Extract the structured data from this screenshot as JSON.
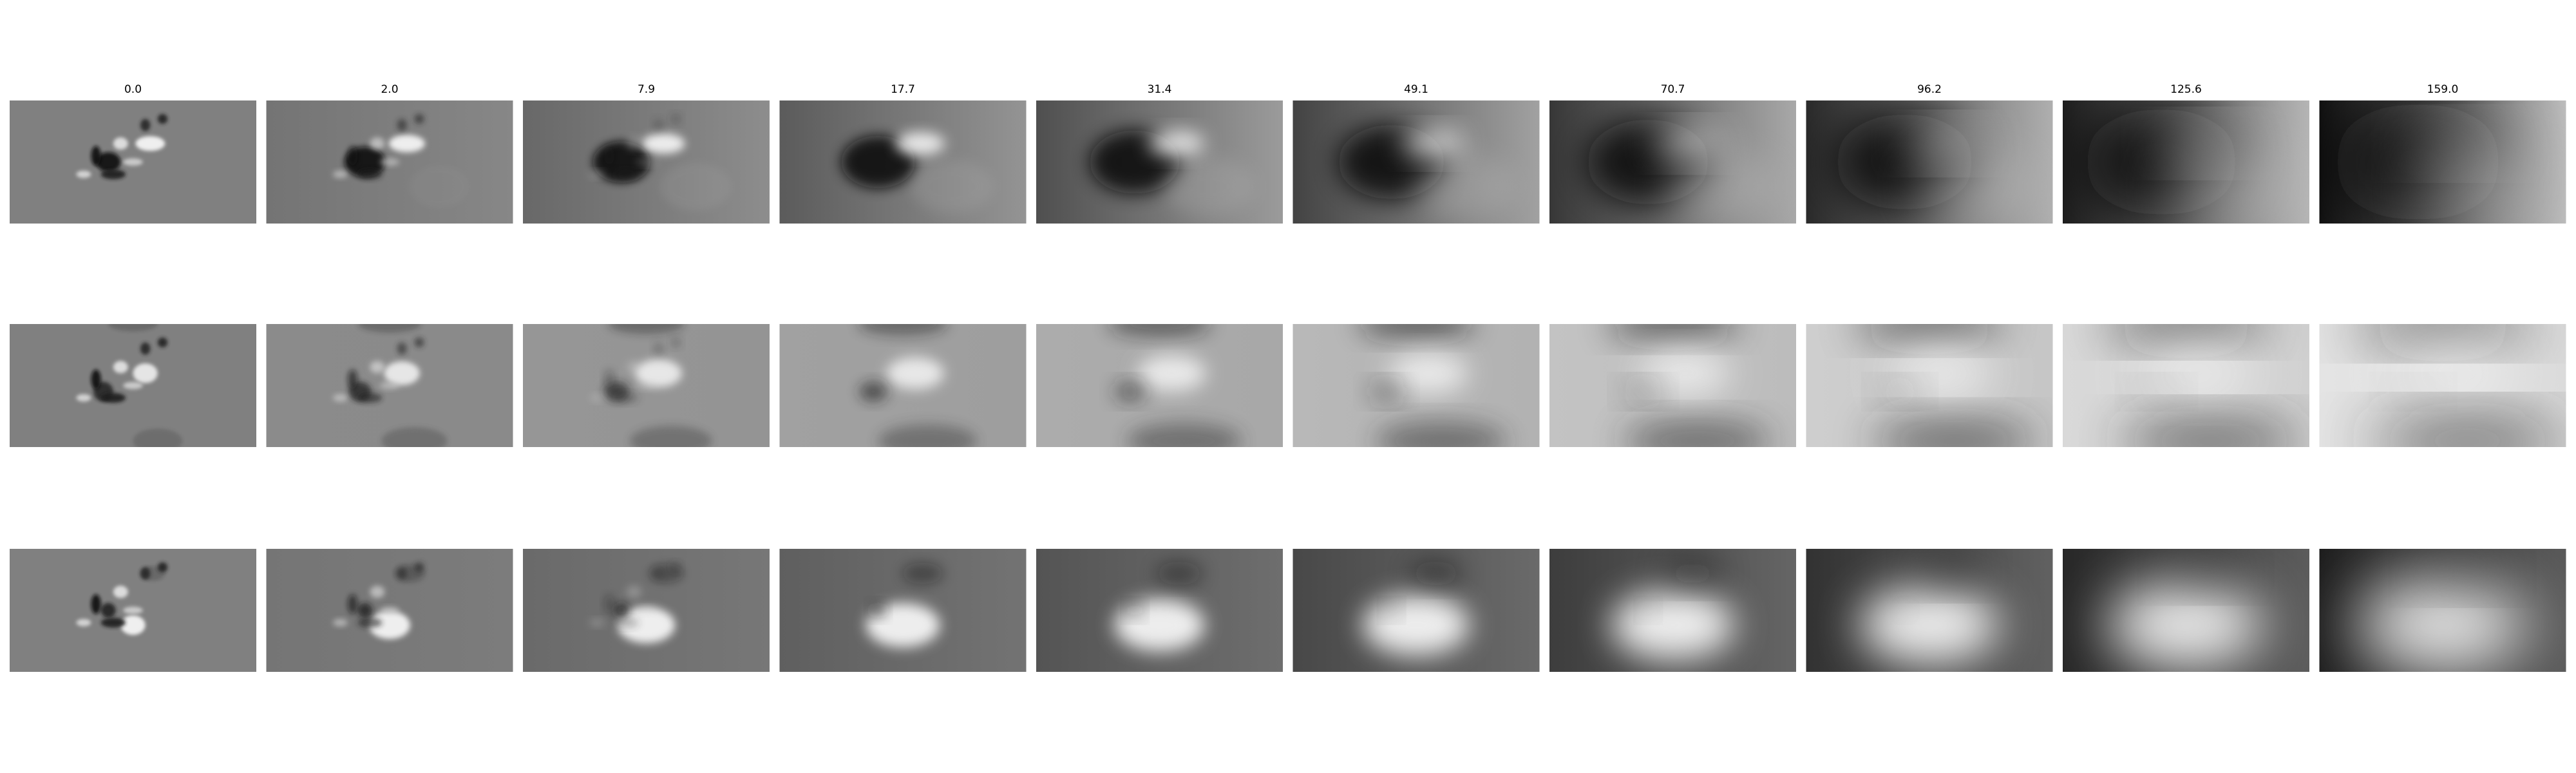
{
  "column_titles": [
    "0.0",
    "2.0",
    "7.9",
    "17.7",
    "31.4",
    "49.1",
    "70.7",
    "96.2",
    "125.6",
    "159.0"
  ]
}
